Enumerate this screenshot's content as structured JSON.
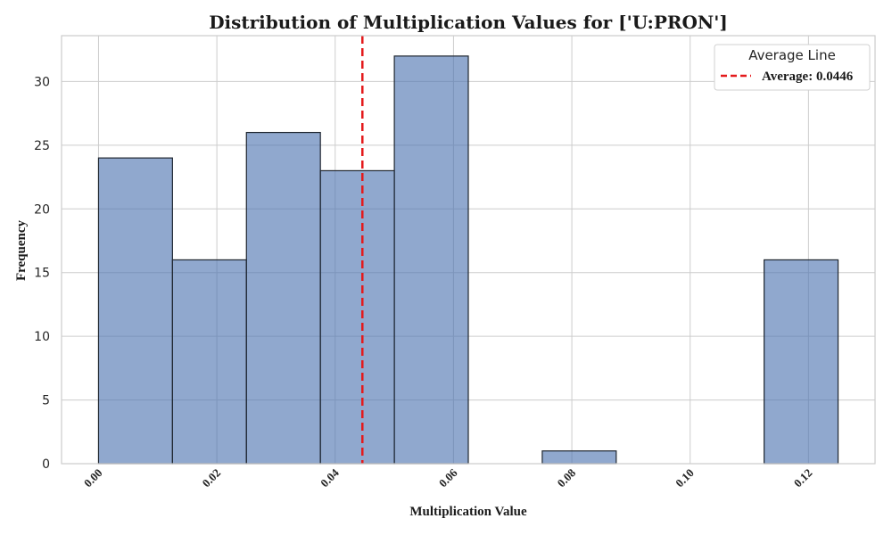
{
  "chart_data": {
    "type": "bar",
    "title": "Distribution of Multiplication Values for ['U:PRON']",
    "xlabel": "Multiplication Value",
    "ylabel": "Frequency",
    "bins": [
      {
        "x0": 0.0,
        "x1": 0.0125,
        "count": 24
      },
      {
        "x0": 0.0125,
        "x1": 0.025,
        "count": 16
      },
      {
        "x0": 0.025,
        "x1": 0.0375,
        "count": 26
      },
      {
        "x0": 0.0375,
        "x1": 0.05,
        "count": 23
      },
      {
        "x0": 0.05,
        "x1": 0.0625,
        "count": 32
      },
      {
        "x0": 0.0625,
        "x1": 0.075,
        "count": 0
      },
      {
        "x0": 0.075,
        "x1": 0.0875,
        "count": 1
      },
      {
        "x0": 0.0875,
        "x1": 0.1,
        "count": 0
      },
      {
        "x0": 0.1,
        "x1": 0.1125,
        "count": 0
      },
      {
        "x0": 0.1125,
        "x1": 0.125,
        "count": 16
      }
    ],
    "xlim": [
      -0.00625,
      0.13125
    ],
    "ylim": [
      0,
      33.6
    ],
    "xticks": [
      "0.00",
      "0.02",
      "0.04",
      "0.06",
      "0.08",
      "0.10",
      "0.12"
    ],
    "yticks": [
      "0",
      "5",
      "10",
      "15",
      "20",
      "25",
      "30"
    ],
    "grid": true,
    "bar_color": "#4c72b0",
    "average": {
      "value": 0.0446,
      "label": "Average: 0.0446",
      "color": "#e41a1c"
    },
    "legend": {
      "title": "Average Line",
      "position": "top-right"
    }
  }
}
